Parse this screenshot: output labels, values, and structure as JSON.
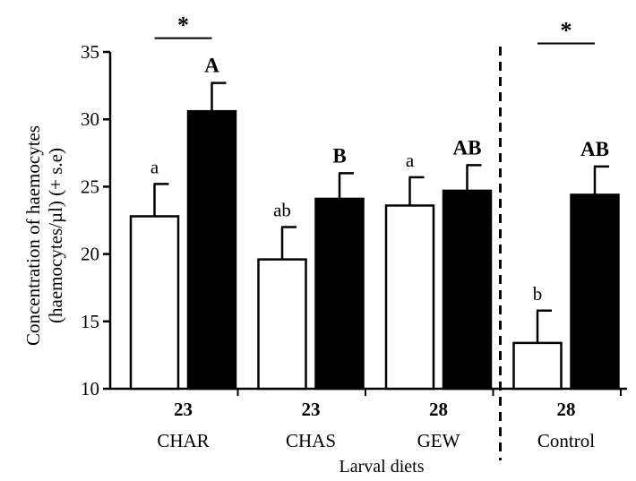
{
  "chart_data": {
    "type": "bar",
    "title": "",
    "xlabel": "Larval diets",
    "ylabel": "Concentration of haemocytes (haemocytes/µl) (+ s.e)",
    "ylabel_lines": [
      "Concentration of haemocytes",
      "(haemocytes/µl) (+ s.e)"
    ],
    "ylim": [
      10,
      35
    ],
    "yticks": [
      10,
      15,
      20,
      25,
      30,
      35
    ],
    "grid": false,
    "legend": "none",
    "categories": [
      {
        "number": "23",
        "name": "CHAR"
      },
      {
        "number": "23",
        "name": "CHAS"
      },
      {
        "number": "28",
        "name": "GEW"
      },
      {
        "number": "28",
        "name": "Control"
      }
    ],
    "series": [
      {
        "fill": "#ffffff",
        "values": [
          22.8,
          19.6,
          23.6,
          13.4
        ],
        "errors": [
          2.4,
          2.4,
          2.1,
          2.4
        ],
        "letters": [
          "a",
          "ab",
          "a",
          "b"
        ]
      },
      {
        "fill": "#000000",
        "values": [
          30.6,
          24.1,
          24.7,
          24.4
        ],
        "errors": [
          2.1,
          1.9,
          1.9,
          2.1
        ],
        "letters": [
          "A",
          "B",
          "AB",
          "AB"
        ]
      }
    ],
    "significance": [
      {
        "category_index": 0,
        "label": "*"
      },
      {
        "category_index": 3,
        "label": "*"
      }
    ],
    "separator_after_category": 2
  }
}
